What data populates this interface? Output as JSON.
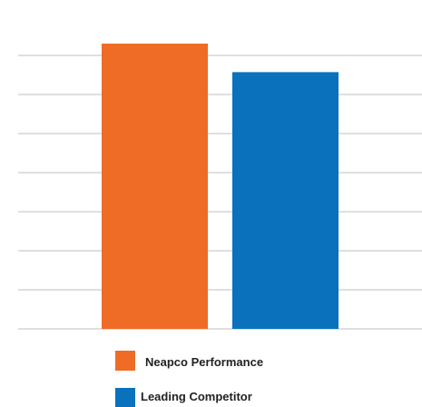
{
  "chart_data": {
    "type": "bar",
    "categories": [
      "Neapco Performance",
      "Leading Competitor"
    ],
    "values": [
      100,
      90
    ],
    "title": "",
    "xlabel": "",
    "ylabel": "",
    "ylim": [
      0,
      100
    ],
    "gridline_count": 8,
    "grid": true,
    "legend_position": "bottom",
    "colors": {
      "neapco": "#EE6C26",
      "competitor": "#0A71BD",
      "grid": "#CCCCCC"
    }
  },
  "legend": {
    "items": [
      {
        "label": "Neapco Performance",
        "color": "#EE6C26"
      },
      {
        "label": "Leading Competitor",
        "color": "#0A71BD"
      }
    ]
  }
}
